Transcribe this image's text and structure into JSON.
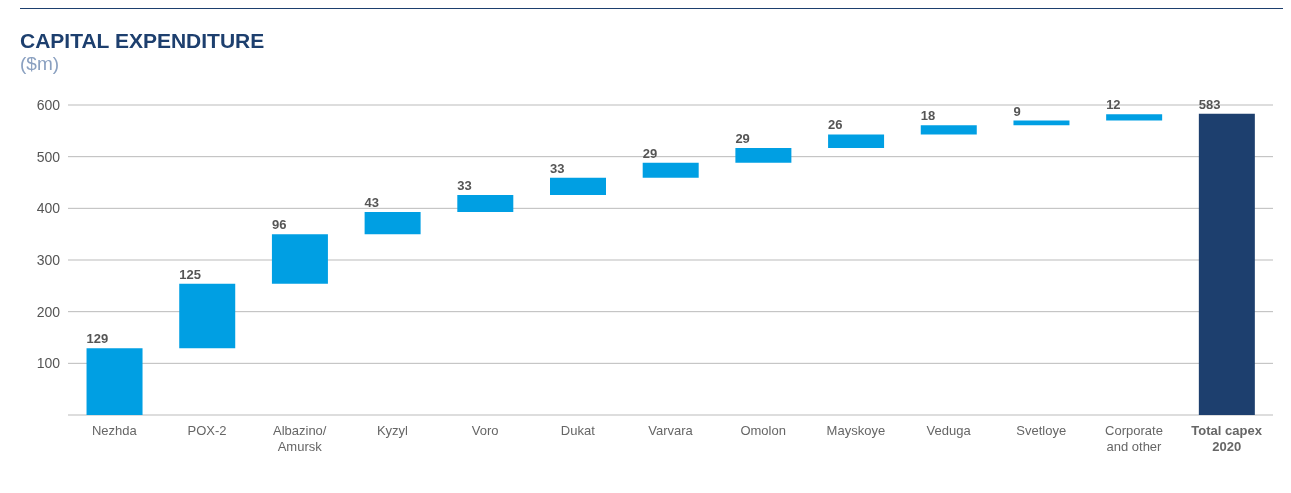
{
  "chart_data": {
    "type": "bar",
    "title": "CAPITAL EXPENDITURE",
    "subtitle": "($m)",
    "categories": [
      "Nezhda",
      "POX-2",
      "Albazino/Amursk",
      "Kyzyl",
      "Voro",
      "Dukat",
      "Varvara",
      "Omolon",
      "Mayskoye",
      "Veduga",
      "Svetloye",
      "Corporate and other",
      "Total capex 2020"
    ],
    "values": [
      129,
      125,
      96,
      43,
      33,
      33,
      29,
      29,
      26,
      18,
      9,
      12,
      583
    ],
    "base": [
      0,
      129,
      254,
      350,
      393,
      426,
      459,
      488,
      517,
      543,
      561,
      570,
      0
    ],
    "colors": [
      "#009fe3",
      "#009fe3",
      "#009fe3",
      "#009fe3",
      "#009fe3",
      "#009fe3",
      "#009fe3",
      "#009fe3",
      "#009fe3",
      "#009fe3",
      "#009fe3",
      "#009fe3",
      "#1d3f6e"
    ],
    "ylim": [
      0,
      600
    ],
    "yticks": [
      {
        "value": 0,
        "label": null
      },
      100,
      200,
      300,
      400,
      500,
      600
    ],
    "grid": "y",
    "data_labels": true
  }
}
